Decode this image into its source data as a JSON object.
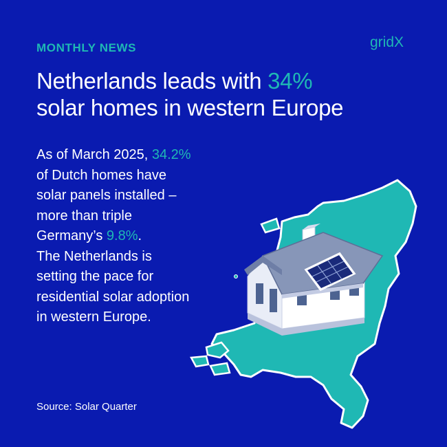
{
  "brand": {
    "kicker": "MONTHLY NEWS",
    "logo_text": "gridX",
    "background_color": "#0a1bb0",
    "accent_color": "#1fb8b4"
  },
  "headline": {
    "line1_prefix": "Netherlands leads with ",
    "line1_highlight": "34%",
    "line2": "solar homes in western Europe"
  },
  "body": {
    "l1_prefix": "As of March 2025, ",
    "l1_highlight": "34.2%",
    "l2": "of Dutch homes have",
    "l3": "solar panels installed –",
    "l4": "more than triple",
    "l5_prefix": "Germany’s ",
    "l5_highlight": "9.8%",
    "l5_suffix": ".",
    "l6": "The Netherlands is",
    "l7": "setting the pace for",
    "l8": "residential solar adoption",
    "l9": "in western Europe."
  },
  "footer": {
    "source": "Source: Solar Quarter"
  },
  "illustration": {
    "map_icon": "netherlands-map-icon",
    "house_icon": "solar-house-icon"
  }
}
